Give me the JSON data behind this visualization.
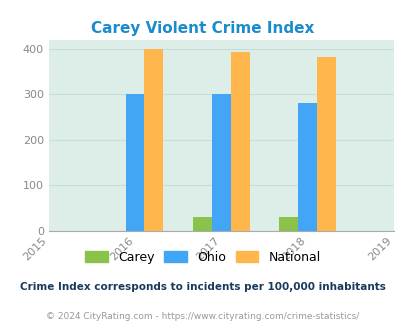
{
  "title": "Carey Violent Crime Index",
  "title_color": "#1a8ccc",
  "years": [
    2016,
    2017,
    2018
  ],
  "x_ticks": [
    2015,
    2016,
    2017,
    2018,
    2019
  ],
  "carey_values": [
    0,
    30,
    30
  ],
  "ohio_values": [
    300,
    300,
    280
  ],
  "national_values": [
    400,
    393,
    382
  ],
  "carey_color": "#8bc34a",
  "ohio_color": "#42a5f5",
  "national_color": "#ffb74d",
  "bar_width": 0.22,
  "ylim": [
    0,
    420
  ],
  "yticks": [
    0,
    100,
    200,
    300,
    400
  ],
  "background_color": "#ddeee8",
  "grid_color": "#c8ddd6",
  "legend_labels": [
    "Carey",
    "Ohio",
    "National"
  ],
  "footnote1": "Crime Index corresponds to incidents per 100,000 inhabitants",
  "footnote2": "© 2024 CityRating.com - https://www.cityrating.com/crime-statistics/",
  "footnote1_color": "#1a3a5c",
  "footnote2_color": "#999999",
  "footnote2_url_color": "#42a5f5"
}
